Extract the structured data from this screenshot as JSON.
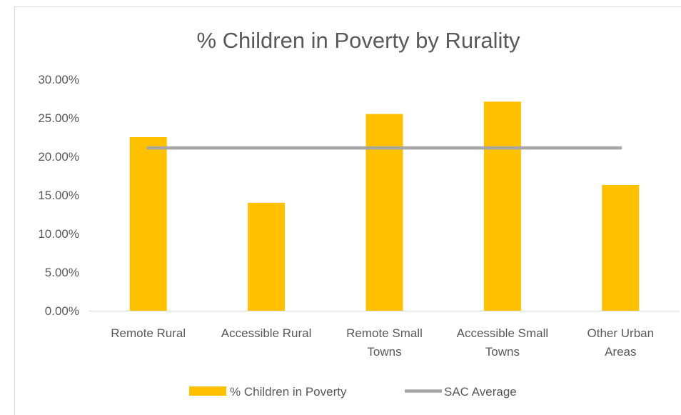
{
  "chart_data": {
    "type": "bar",
    "title": "% Children in Poverty by Rurality",
    "categories": [
      [
        "Remote Rural"
      ],
      [
        "Accessible Rural"
      ],
      [
        "Remote Small",
        "Towns"
      ],
      [
        "Accessible Small",
        "Towns"
      ],
      [
        "Other Urban",
        "Areas"
      ]
    ],
    "series": [
      {
        "name": "% Children in Poverty",
        "type": "bar",
        "color": "#ffc000",
        "values": [
          0.225,
          0.14,
          0.255,
          0.271,
          0.163
        ]
      },
      {
        "name": "SAC Average",
        "type": "line",
        "color": "#a5a5a5",
        "values": [
          0.211,
          0.211,
          0.211,
          0.211,
          0.211
        ]
      }
    ],
    "ylim": [
      0,
      0.3
    ],
    "yticks": [
      {
        "value": 0.0,
        "label": "0.00%"
      },
      {
        "value": 0.05,
        "label": "5.00%"
      },
      {
        "value": 0.1,
        "label": "10.00%"
      },
      {
        "value": 0.15,
        "label": "15.00%"
      },
      {
        "value": 0.2,
        "label": "20.00%"
      },
      {
        "value": 0.25,
        "label": "25.00%"
      },
      {
        "value": 0.3,
        "label": "30.00%"
      }
    ],
    "grid": false,
    "legend_position": "bottom"
  }
}
